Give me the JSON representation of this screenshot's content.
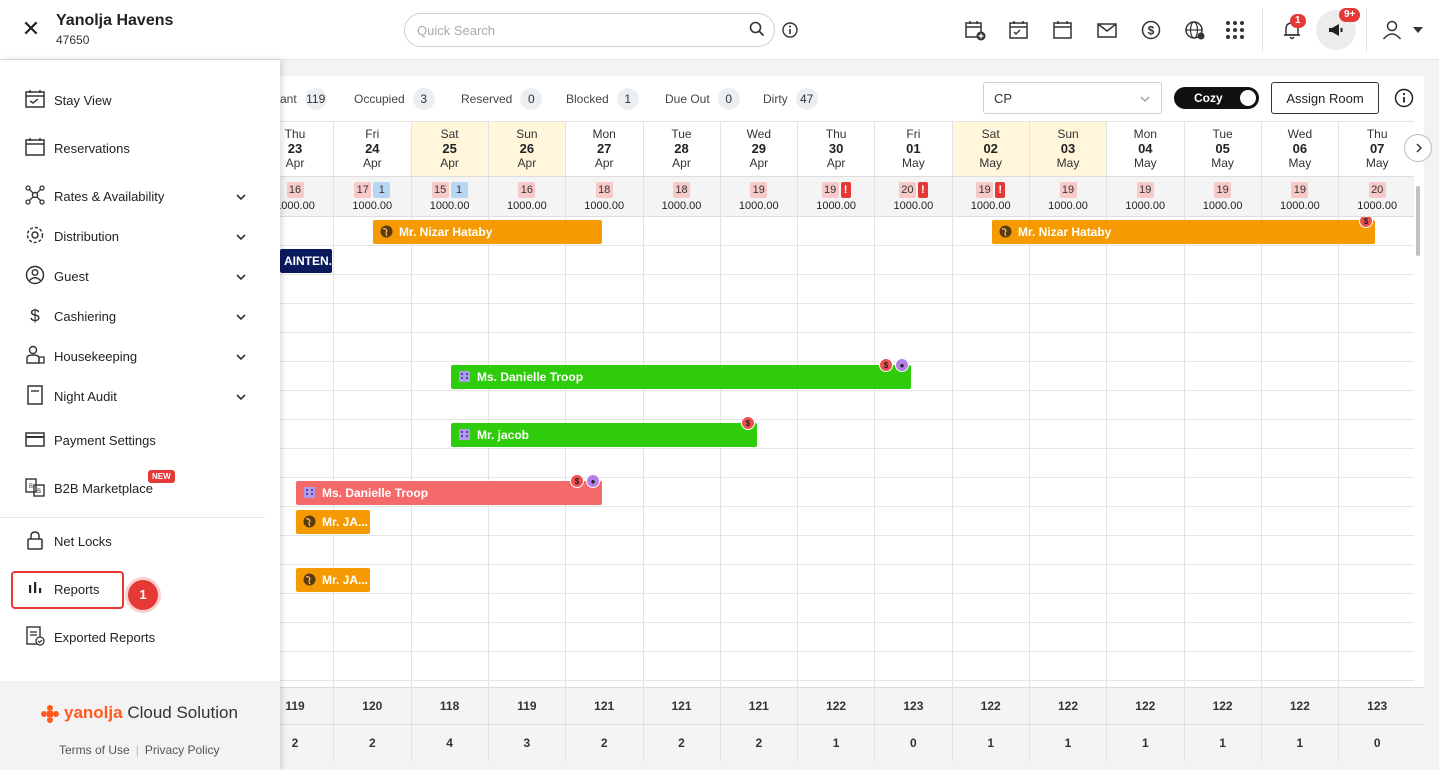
{
  "header": {
    "property_name": "Yanolja Havens",
    "property_id": "47650",
    "search_placeholder": "Quick Search",
    "notifications_count": "1",
    "announcements_count": "9+"
  },
  "sidebar": {
    "items": [
      {
        "label": "Stay View",
        "icon": "calendar-check-icon",
        "expandable": false
      },
      {
        "label": "Reservations",
        "icon": "calendar-icon",
        "expandable": false
      },
      {
        "label": "Rates & Availability",
        "icon": "network-icon",
        "expandable": true
      },
      {
        "label": "Distribution",
        "icon": "gear-icon",
        "expandable": true
      },
      {
        "label": "Guest",
        "icon": "guest-icon",
        "expandable": true
      },
      {
        "label": "Cashiering",
        "icon": "dollar-icon",
        "expandable": true
      },
      {
        "label": "Housekeeping",
        "icon": "housekeeping-icon",
        "expandable": true
      },
      {
        "label": "Night Audit",
        "icon": "document-icon",
        "expandable": true
      },
      {
        "label": "Payment Settings",
        "icon": "card-icon",
        "expandable": false
      },
      {
        "label": "B2B Marketplace",
        "icon": "b2b-icon",
        "expandable": false,
        "badge": "NEW"
      },
      {
        "label": "Net Locks",
        "icon": "lock-icon",
        "expandable": false
      },
      {
        "label": "Reports",
        "icon": "bar-chart-icon",
        "expandable": false
      },
      {
        "label": "Exported Reports",
        "icon": "exported-report-icon",
        "expandable": false
      }
    ],
    "step_number": "1",
    "brand_name": "yanolja",
    "brand_suffix": "Cloud Solution",
    "terms_label": "Terms of Use",
    "privacy_label": "Privacy Policy"
  },
  "stats": [
    {
      "label": "ant",
      "count": "119"
    },
    {
      "label": "Occupied",
      "count": "3"
    },
    {
      "label": "Reserved",
      "count": "0"
    },
    {
      "label": "Blocked",
      "count": "1"
    },
    {
      "label": "Due Out",
      "count": "0"
    },
    {
      "label": "Dirty",
      "count": "47"
    }
  ],
  "controls": {
    "rate_plan": "CP",
    "view_toggle_label": "Cozy",
    "assign_room_label": "Assign Room"
  },
  "dates": [
    {
      "dow": "Thu",
      "day": "23",
      "mon": "Apr",
      "weekend": false
    },
    {
      "dow": "Fri",
      "day": "24",
      "mon": "Apr",
      "weekend": false
    },
    {
      "dow": "Sat",
      "day": "25",
      "mon": "Apr",
      "weekend": true
    },
    {
      "dow": "Sun",
      "day": "26",
      "mon": "Apr",
      "weekend": true
    },
    {
      "dow": "Mon",
      "day": "27",
      "mon": "Apr",
      "weekend": false
    },
    {
      "dow": "Tue",
      "day": "28",
      "mon": "Apr",
      "weekend": false
    },
    {
      "dow": "Wed",
      "day": "29",
      "mon": "Apr",
      "weekend": false
    },
    {
      "dow": "Thu",
      "day": "30",
      "mon": "Apr",
      "weekend": false
    },
    {
      "dow": "Fri",
      "day": "01",
      "mon": "May",
      "weekend": false
    },
    {
      "dow": "Sat",
      "day": "02",
      "mon": "May",
      "weekend": true
    },
    {
      "dow": "Sun",
      "day": "03",
      "mon": "May",
      "weekend": true
    },
    {
      "dow": "Mon",
      "day": "04",
      "mon": "May",
      "weekend": false
    },
    {
      "dow": "Tue",
      "day": "05",
      "mon": "May",
      "weekend": false
    },
    {
      "dow": "Wed",
      "day": "06",
      "mon": "May",
      "weekend": false
    },
    {
      "dow": "Thu",
      "day": "07",
      "mon": "May",
      "weekend": false
    }
  ],
  "availability": [
    {
      "avail": "16",
      "blocked": "",
      "warn": false,
      "price": "1000.00"
    },
    {
      "avail": "17",
      "blocked": "1",
      "warn": false,
      "price": "1000.00"
    },
    {
      "avail": "15",
      "blocked": "1",
      "warn": false,
      "price": "1000.00"
    },
    {
      "avail": "16",
      "blocked": "",
      "warn": false,
      "price": "1000.00"
    },
    {
      "avail": "18",
      "blocked": "",
      "warn": false,
      "price": "1000.00"
    },
    {
      "avail": "18",
      "blocked": "",
      "warn": false,
      "price": "1000.00"
    },
    {
      "avail": "19",
      "blocked": "",
      "warn": false,
      "price": "1000.00"
    },
    {
      "avail": "19",
      "blocked": "",
      "warn": true,
      "price": "1000.00"
    },
    {
      "avail": "20",
      "blocked": "",
      "warn": true,
      "price": "1000.00"
    },
    {
      "avail": "19",
      "blocked": "",
      "warn": true,
      "price": "1000.00"
    },
    {
      "avail": "19",
      "blocked": "",
      "warn": false,
      "price": "1000.00"
    },
    {
      "avail": "19",
      "blocked": "",
      "warn": false,
      "price": "1000.00"
    },
    {
      "avail": "19",
      "blocked": "",
      "warn": false,
      "price": "1000.00"
    },
    {
      "avail": "19",
      "blocked": "",
      "warn": false,
      "price": "1000.00"
    },
    {
      "avail": "20",
      "blocked": "",
      "warn": false,
      "price": "1000.00"
    }
  ],
  "bookings": [
    {
      "guest": "Mr. Nizar Hataby",
      "color": "orange",
      "source": "globe-icon"
    },
    {
      "guest": "Mr. Nizar Hataby",
      "color": "orange",
      "source": "globe-icon"
    },
    {
      "guest": "AINTEN...",
      "color": "navy",
      "source": ""
    },
    {
      "guest": "Ms. Danielle Troop",
      "color": "green",
      "source": "building-icon"
    },
    {
      "guest": "Mr. jacob",
      "color": "green",
      "source": "building-icon"
    },
    {
      "guest": "Ms. Danielle Troop",
      "color": "pink",
      "source": "building-icon"
    },
    {
      "guest": "Mr. JA...",
      "color": "orange",
      "source": "globe-icon"
    },
    {
      "guest": "Mr. JA...",
      "color": "orange",
      "source": "globe-icon"
    }
  ],
  "summary": {
    "row1": [
      "119",
      "120",
      "118",
      "119",
      "121",
      "121",
      "121",
      "122",
      "123",
      "122",
      "122",
      "122",
      "122",
      "122",
      "123"
    ],
    "row2": [
      "2",
      "2",
      "4",
      "3",
      "2",
      "2",
      "2",
      "1",
      "0",
      "1",
      "1",
      "1",
      "1",
      "1",
      "0"
    ]
  },
  "colors": {
    "accent_red": "#e53935",
    "booking_orange": "#f59a00",
    "booking_green": "#2ecc0a",
    "booking_pink": "#f46a6a",
    "weekend_bg": "#fff6dc"
  }
}
